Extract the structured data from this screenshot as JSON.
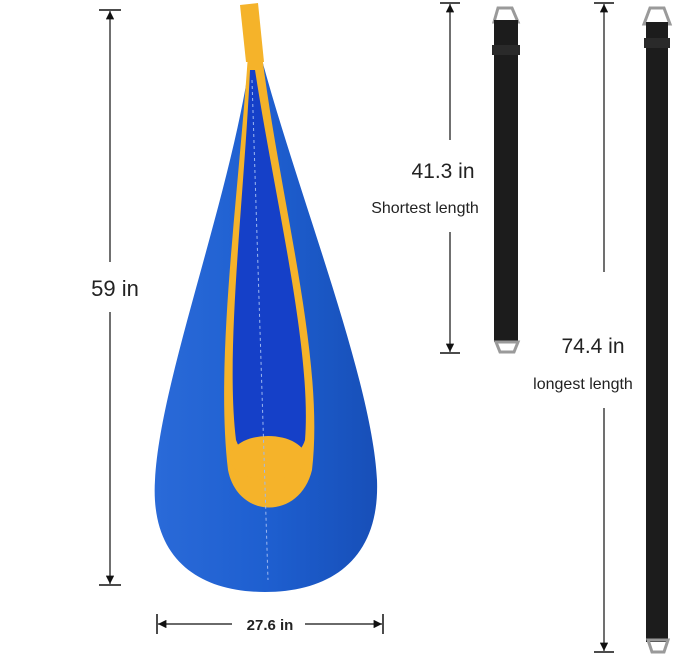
{
  "dimensions": {
    "height_label": "59 in",
    "width_label": "27.6 in",
    "short_strap_value": "41.3 in",
    "short_strap_caption": "Shortest length",
    "long_strap_value": "74.4 in",
    "long_strap_caption": "longest length"
  },
  "colors": {
    "pod_blue": "#1e5fd0",
    "pod_inner_blue": "#1540c8",
    "trim_yellow": "#f5b32a",
    "strap_black": "#1c1c1c",
    "ring_metal": "#9a9a9a"
  }
}
